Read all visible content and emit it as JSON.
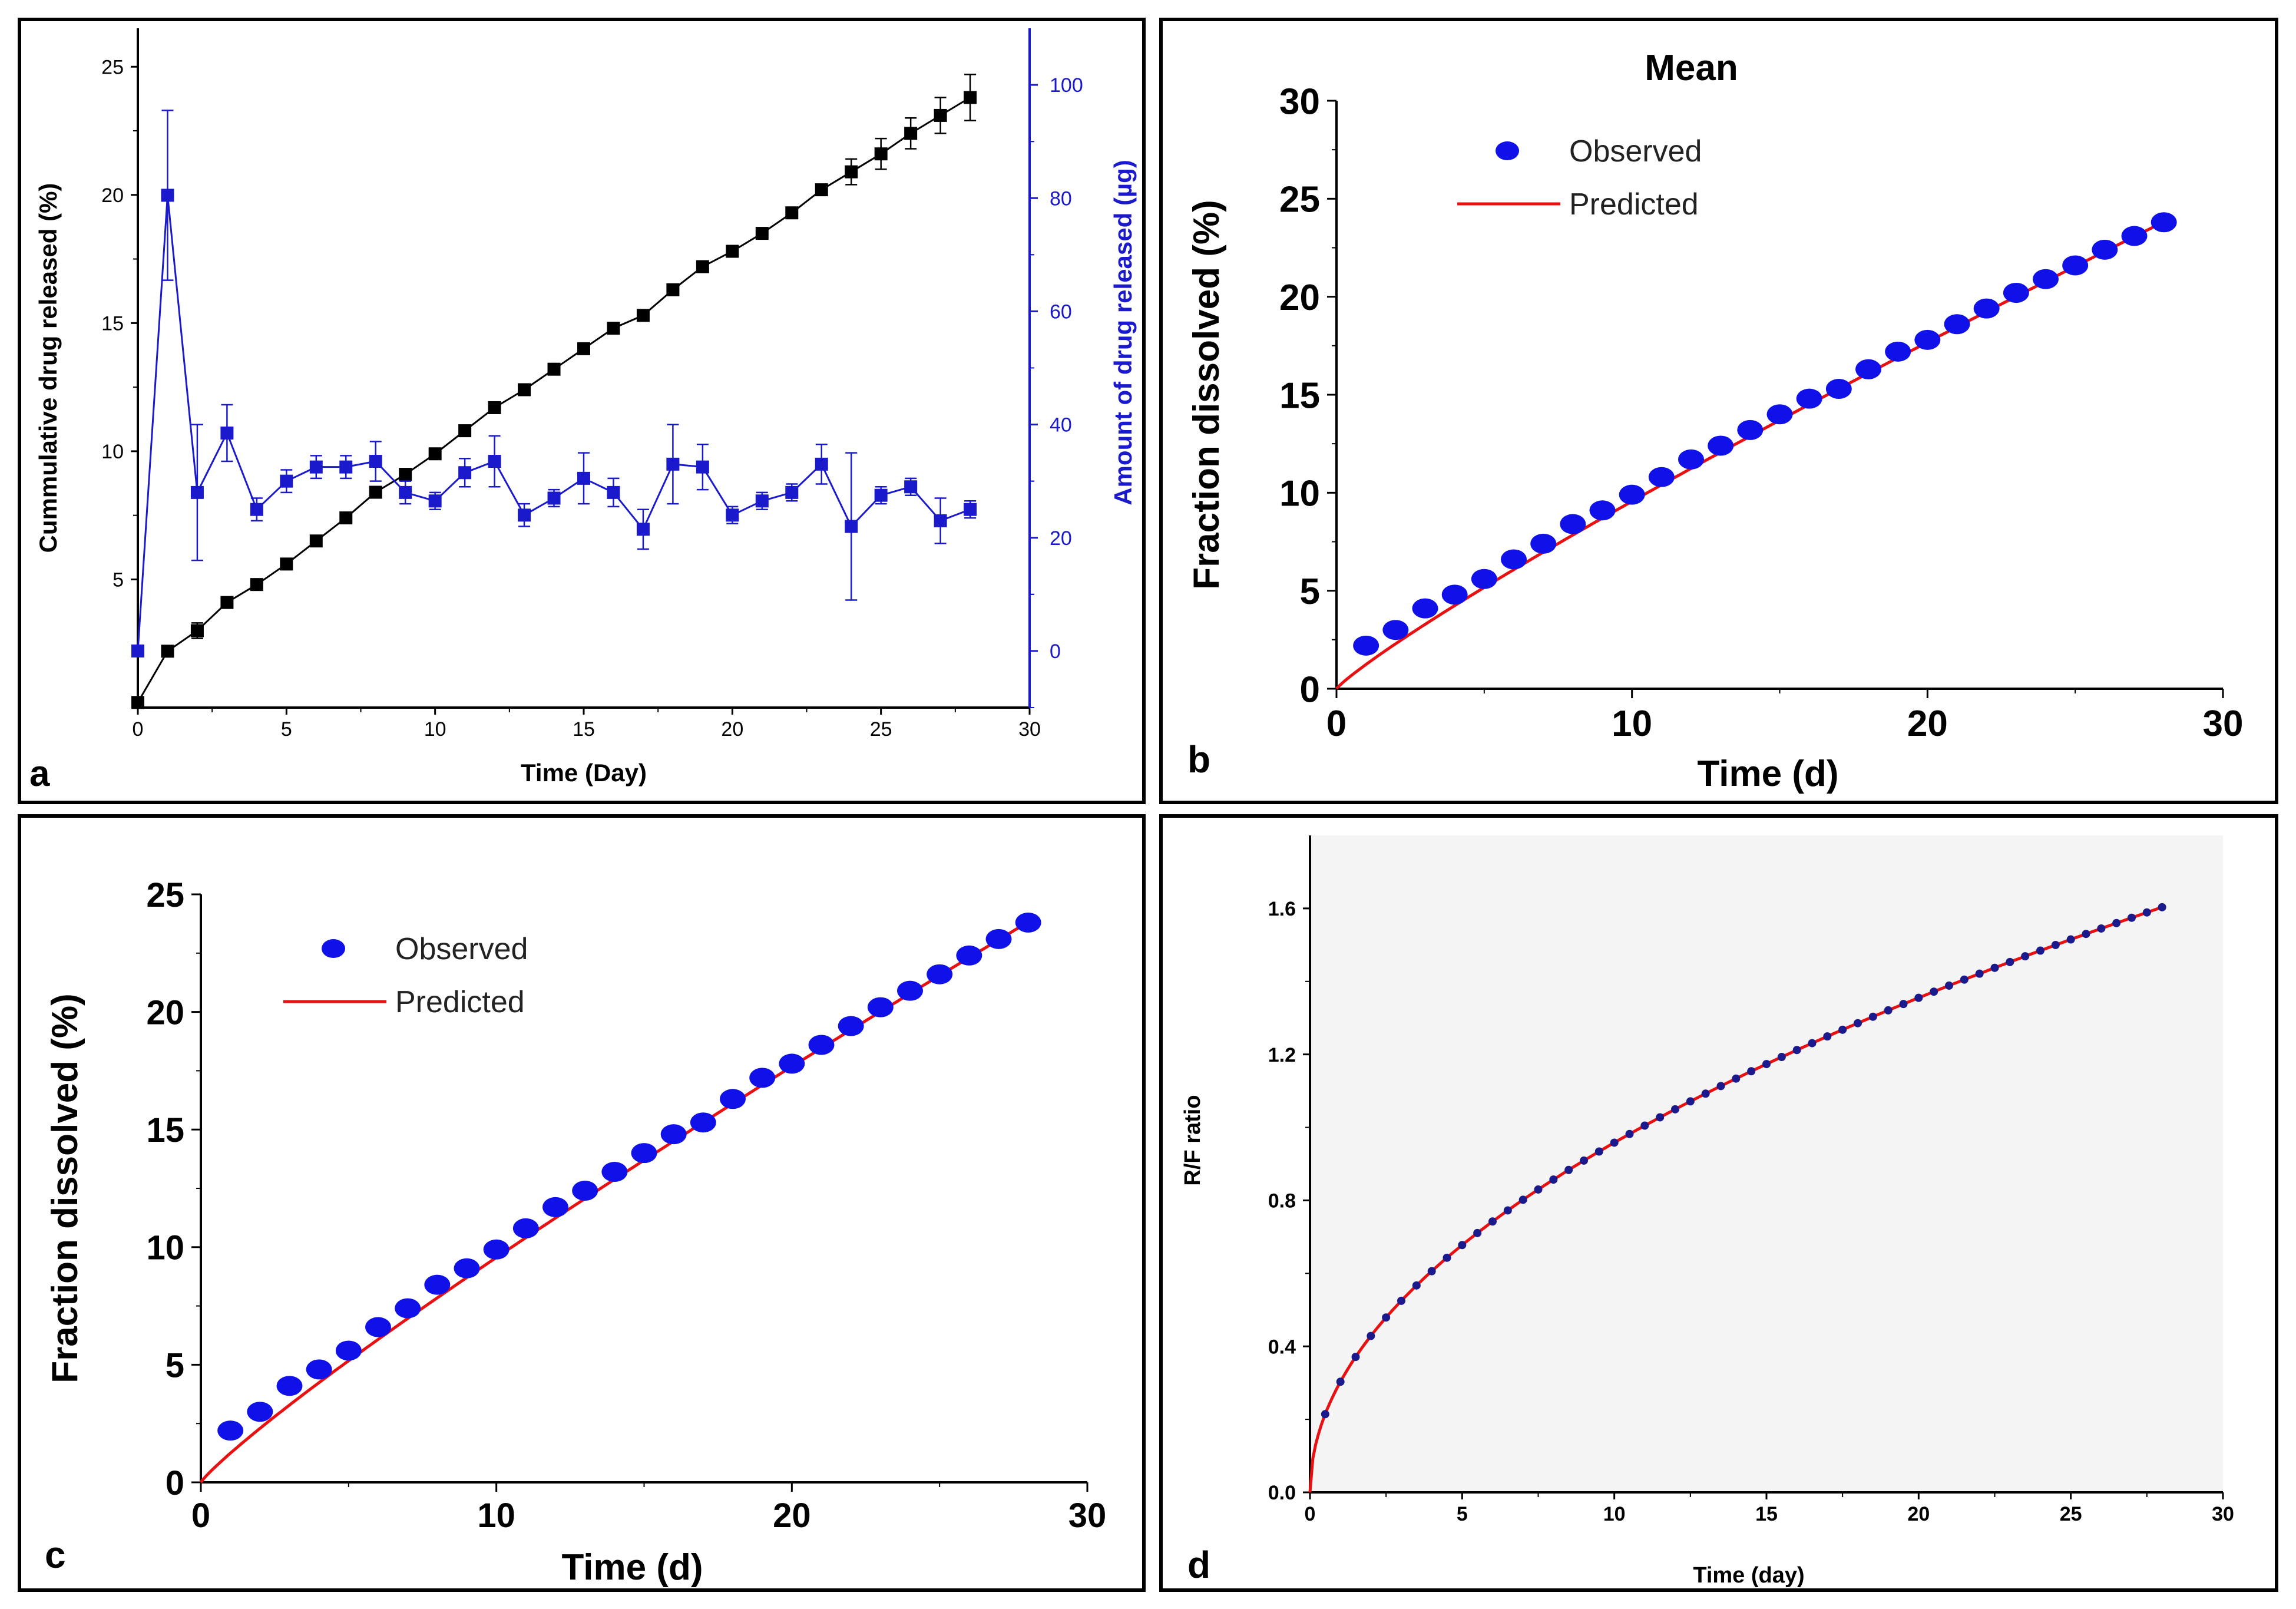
{
  "panels": [
    {
      "id": "a",
      "letter": "a",
      "type": "line",
      "xlabel": "Time (Day)",
      "ylabel": "Cummulative drug released (%)",
      "y2label": "Amount of drug released (µg)",
      "xlim": [
        0,
        30
      ],
      "ylim": [
        0,
        26.5
      ],
      "y2lim": [
        -10,
        110
      ],
      "xticks": [
        "0",
        "5",
        "10",
        "15",
        "20",
        "25",
        "30"
      ],
      "yticks": [
        "5",
        "10",
        "15",
        "20",
        "25"
      ],
      "y2ticks": [
        "0",
        "20",
        "40",
        "60",
        "80",
        "100"
      ],
      "colors": {
        "series1": "#000000",
        "series2": "#1a1acc"
      },
      "series": [
        {
          "name": "Cummulative drug released",
          "axis": "left",
          "x": [
            0,
            1,
            2,
            3,
            4,
            5,
            6,
            7,
            8,
            9,
            10,
            11,
            12,
            13,
            14,
            15,
            16,
            17,
            18,
            19,
            20,
            21,
            22,
            23,
            24,
            25,
            26,
            27,
            28
          ],
          "y": [
            0.2,
            2.2,
            3.0,
            4.1,
            4.8,
            5.6,
            6.5,
            7.4,
            8.4,
            9.1,
            9.9,
            10.8,
            11.7,
            12.4,
            13.2,
            14.0,
            14.8,
            15.3,
            16.3,
            17.2,
            17.8,
            18.5,
            19.3,
            20.2,
            20.9,
            21.6,
            22.4,
            23.1,
            23.8
          ],
          "err": [
            0,
            0.15,
            0.3,
            0.15,
            0.15,
            0.15,
            0.15,
            0.15,
            0.15,
            0.15,
            0.15,
            0.15,
            0.15,
            0.15,
            0.15,
            0.15,
            0.15,
            0.15,
            0.15,
            0.15,
            0.15,
            0.15,
            0.15,
            0.15,
            0.5,
            0.6,
            0.6,
            0.7,
            0.9
          ]
        },
        {
          "name": "Amount of drug released",
          "axis": "right",
          "x": [
            0,
            1,
            2,
            3,
            4,
            5,
            6,
            7,
            8,
            9,
            10,
            11,
            12,
            13,
            14,
            15,
            16,
            17,
            18,
            19,
            20,
            21,
            22,
            23,
            24,
            25,
            26,
            27,
            28
          ],
          "y": [
            0,
            80.5,
            28,
            38.5,
            25,
            30,
            32.5,
            32.5,
            33.5,
            28,
            26.5,
            31.5,
            33.5,
            24,
            27,
            30.5,
            28,
            21.5,
            33,
            32.5,
            24,
            26.5,
            28,
            33,
            22,
            27.5,
            29,
            23,
            25
          ],
          "err": [
            0,
            15,
            12,
            5,
            2,
            2,
            2,
            2,
            3.5,
            2,
            1.5,
            2.5,
            4.5,
            2,
            1.5,
            4.5,
            2.5,
            3.5,
            7,
            4,
            1.5,
            1.5,
            1.5,
            3.5,
            13,
            1.5,
            1.5,
            4,
            1.5
          ]
        }
      ]
    },
    {
      "id": "b",
      "letter": "b",
      "type": "scatter+line",
      "title": "Mean",
      "xlabel": "Time (d)",
      "ylabel": "Fraction dissolved (%)",
      "xlim": [
        0,
        30
      ],
      "ylim": [
        0,
        30
      ],
      "xticks": [
        "0",
        "10",
        "20",
        "30"
      ],
      "yticks": [
        "0",
        "5",
        "10",
        "15",
        "20",
        "25",
        "30"
      ],
      "legend": [
        "Observed",
        "Predicted"
      ],
      "colors": {
        "observed": "#1010e8",
        "predicted": "#e81010"
      },
      "observed": {
        "x": [
          1,
          2,
          3,
          4,
          5,
          6,
          7,
          8,
          9,
          10,
          11,
          12,
          13,
          14,
          15,
          16,
          17,
          18,
          19,
          20,
          21,
          22,
          23,
          24,
          25,
          26,
          27,
          28
        ],
        "y": [
          2.2,
          3.0,
          4.1,
          4.8,
          5.6,
          6.6,
          7.4,
          8.4,
          9.1,
          9.9,
          10.8,
          11.7,
          12.4,
          13.2,
          14.0,
          14.8,
          15.3,
          16.3,
          17.2,
          17.8,
          18.6,
          19.4,
          20.2,
          20.9,
          21.6,
          22.4,
          23.1,
          23.8
        ]
      },
      "predicted": {
        "model": "power",
        "a": 1.24,
        "b": 0.887
      }
    },
    {
      "id": "c",
      "letter": "c",
      "type": "scatter+line",
      "xlabel": "Time (d)",
      "ylabel": "Fraction dissolved (%)",
      "xlim": [
        0,
        30
      ],
      "ylim": [
        0,
        25
      ],
      "xticks": [
        "0",
        "10",
        "20",
        "30"
      ],
      "yticks": [
        "0",
        "5",
        "10",
        "15",
        "20",
        "25"
      ],
      "legend": [
        "Observed",
        "Predicted"
      ],
      "colors": {
        "observed": "#1010e8",
        "predicted": "#e81010"
      },
      "observed": {
        "x": [
          1,
          2,
          3,
          4,
          5,
          6,
          7,
          8,
          9,
          10,
          11,
          12,
          13,
          14,
          15,
          16,
          17,
          18,
          19,
          20,
          21,
          22,
          23,
          24,
          25,
          26,
          27,
          28
        ],
        "y": [
          2.2,
          3.0,
          4.1,
          4.8,
          5.6,
          6.6,
          7.4,
          8.4,
          9.1,
          9.9,
          10.8,
          11.7,
          12.4,
          13.2,
          14.0,
          14.8,
          15.3,
          16.3,
          17.2,
          17.8,
          18.6,
          19.4,
          20.2,
          20.9,
          21.6,
          22.4,
          23.1,
          23.8
        ]
      },
      "predicted": {
        "model": "power",
        "a": 1.24,
        "b": 0.887
      }
    },
    {
      "id": "d",
      "letter": "d",
      "type": "scatter+line",
      "xlabel": "Time (day)",
      "ylabel": "R/F ratio",
      "xlim": [
        0,
        30
      ],
      "ylim": [
        0,
        1.8
      ],
      "xticks": [
        "0",
        "5",
        "10",
        "15",
        "20",
        "25",
        "30"
      ],
      "yticks": [
        "0.0",
        "0.4",
        "0.8",
        "1.2",
        "1.6"
      ],
      "colors": {
        "observed": "#1a1a8c",
        "predicted": "#e81010"
      },
      "observed": {
        "x_start": 0.5,
        "x_end": 28,
        "x_step": 0.5
      },
      "predicted": {
        "model": "power",
        "a": 0.303,
        "b": 0.5
      }
    }
  ]
}
